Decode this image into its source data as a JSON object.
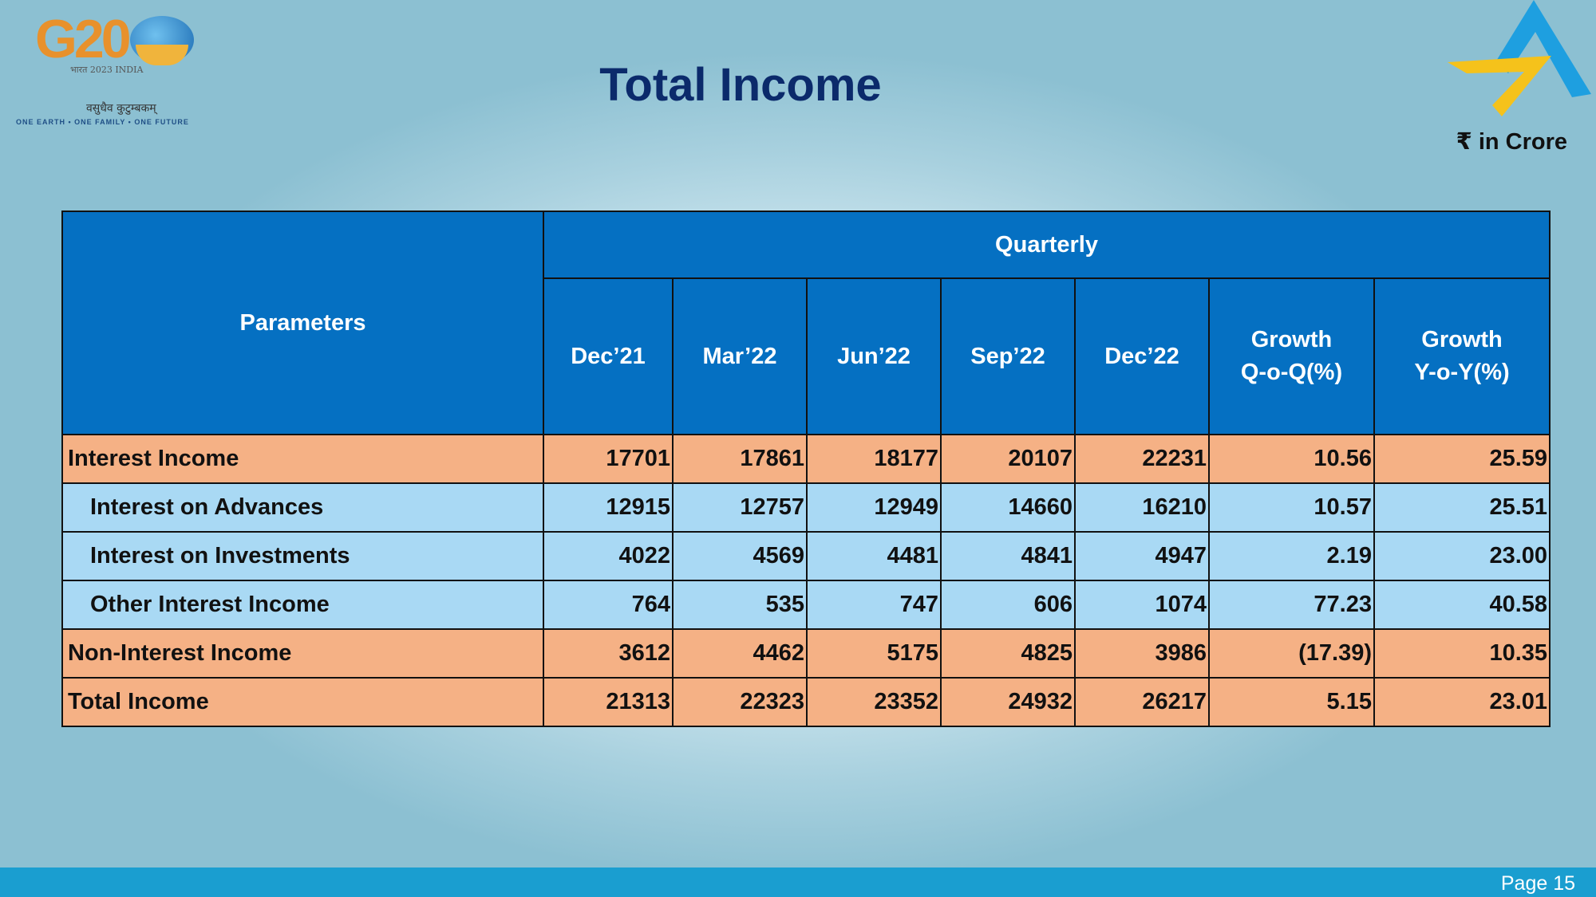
{
  "header": {
    "title": "Total Income",
    "unit_label": "₹ in Crore"
  },
  "logos": {
    "g20": {
      "text": "G20",
      "line1": "भारत 2023 INDIA",
      "line2": "वसुधैव कुटुम्बकम्",
      "line3": "ONE EARTH • ONE FAMILY • ONE FUTURE"
    },
    "brand_colors": {
      "blue": "#1e9fe0",
      "yellow": "#f5c21b"
    }
  },
  "table": {
    "parameters_header": "Parameters",
    "group_header": "Quarterly",
    "columns": [
      {
        "line1": "Dec’21",
        "line2": ""
      },
      {
        "line1": "Mar’22",
        "line2": ""
      },
      {
        "line1": "Jun’22",
        "line2": ""
      },
      {
        "line1": "Sep’22",
        "line2": ""
      },
      {
        "line1": "Dec’22",
        "line2": ""
      },
      {
        "line1": "Growth",
        "line2": "Q-o-Q(%)"
      },
      {
        "line1": "Growth",
        "line2": "Y-o-Y(%)"
      }
    ],
    "rows": [
      {
        "label": "Interest Income",
        "type": "main",
        "values": [
          "17701",
          "17861",
          "18177",
          "20107",
          "22231",
          "10.56",
          "25.59"
        ]
      },
      {
        "label": "Interest on Advances",
        "type": "sub",
        "values": [
          "12915",
          "12757",
          "12949",
          "14660",
          "16210",
          "10.57",
          "25.51"
        ]
      },
      {
        "label": "Interest on Investments",
        "type": "sub",
        "values": [
          "4022",
          "4569",
          "4481",
          "4841",
          "4947",
          "2.19",
          "23.00"
        ]
      },
      {
        "label": "Other Interest Income",
        "type": "sub",
        "values": [
          "764",
          "535",
          "747",
          "606",
          "1074",
          "77.23",
          "40.58"
        ]
      },
      {
        "label": "Non-Interest Income",
        "type": "main",
        "values": [
          "3612",
          "4462",
          "5175",
          "4825",
          "3986",
          "(17.39)",
          "10.35"
        ]
      },
      {
        "label": "Total Income",
        "type": "main",
        "values": [
          "21313",
          "22323",
          "23352",
          "24932",
          "26217",
          "5.15",
          "23.01"
        ]
      }
    ]
  },
  "footer": {
    "page_label": "Page 15"
  }
}
